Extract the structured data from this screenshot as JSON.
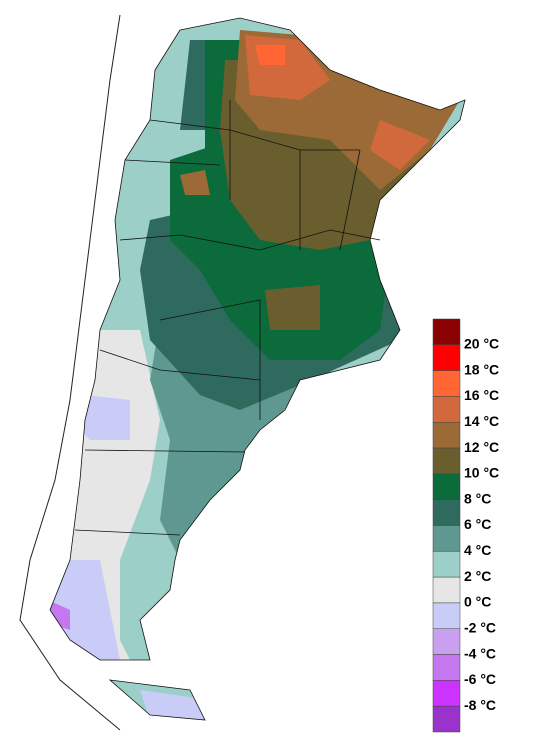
{
  "legend": {
    "colors": [
      "#8b0000",
      "#ff0000",
      "#ff6633",
      "#d2693c",
      "#9c6a36",
      "#6b5e2e",
      "#0b6b3a",
      "#2f6a5e",
      "#5e9890",
      "#9ccfc8",
      "#e6e6e6",
      "#c9ccf6",
      "#c8a0ef",
      "#c477ef",
      "#cc33ff",
      "#9933cc"
    ],
    "labels": [
      "20 °C",
      "18 °C",
      "16 °C",
      "14 °C",
      "12 °C",
      "10 °C",
      "8 °C",
      "6 °C",
      "4 °C",
      "2 °C",
      "0 °C",
      "-2 °C",
      "-4 °C",
      "-6 °C",
      "-8 °C"
    ]
  }
}
